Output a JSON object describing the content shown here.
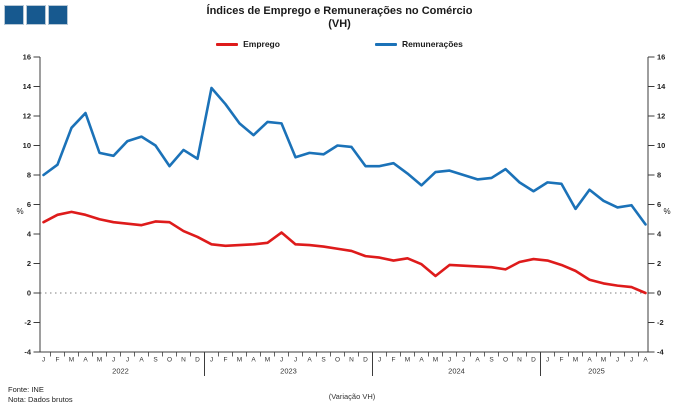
{
  "logo": {
    "square_count": 3,
    "color": "#17598F"
  },
  "title": "Índices de Emprego e Remunerações no Comércio",
  "subtitle": "(VH)",
  "legend": [
    {
      "label": "Emprego",
      "color": "#DE1B1B"
    },
    {
      "label": "Remunerações",
      "color": "#1B72B8"
    }
  ],
  "footer": {
    "source": "Fonte: INE",
    "note": "Nota: Dados brutos",
    "caption": "(Variação VH)"
  },
  "chart_data": {
    "type": "line",
    "title": "Índices de Emprego e Remunerações no Comércio (VH)",
    "ylabel_left": "%",
    "ylabel_right": "%",
    "ylim": [
      -4,
      16
    ],
    "yticks": [
      16,
      14,
      12,
      10,
      8,
      6,
      4,
      2,
      0,
      -2,
      -4
    ],
    "grid": false,
    "zero_line_dotted": true,
    "legend_position": "top",
    "axis_color": "#3c3c3c",
    "years": [
      {
        "label": "2022",
        "months": 12
      },
      {
        "label": "2023",
        "months": 12
      },
      {
        "label": "2024",
        "months": 12
      },
      {
        "label": "2025",
        "months": 8
      }
    ],
    "x_labels": [
      "J",
      "F",
      "M",
      "A",
      "M",
      "J",
      "J",
      "A",
      "S",
      "O",
      "N",
      "D",
      "J",
      "F",
      "M",
      "A",
      "M",
      "J",
      "J",
      "A",
      "S",
      "O",
      "N",
      "D",
      "J",
      "F",
      "M",
      "A",
      "M",
      "J",
      "J",
      "A",
      "S",
      "O",
      "N",
      "D",
      "J",
      "F",
      "M",
      "A",
      "M",
      "J",
      "J",
      "A"
    ],
    "series": [
      {
        "name": "Emprego",
        "color": "#DE1B1B",
        "values": [
          4.8,
          5.3,
          5.5,
          5.3,
          5.0,
          4.8,
          4.7,
          4.6,
          4.85,
          4.8,
          4.2,
          3.8,
          3.3,
          3.2,
          3.25,
          3.3,
          3.4,
          4.1,
          3.3,
          3.25,
          3.15,
          3.0,
          2.85,
          2.5,
          2.4,
          2.2,
          2.35,
          1.95,
          1.15,
          1.9,
          1.85,
          1.8,
          1.75,
          1.6,
          2.1,
          2.3,
          2.2,
          1.9,
          1.5,
          0.9,
          0.65,
          0.5,
          0.4,
          0.0
        ]
      },
      {
        "name": "Remunerações",
        "color": "#1B72B8",
        "values": [
          8.0,
          8.7,
          11.2,
          12.2,
          9.5,
          9.3,
          10.3,
          10.6,
          10.0,
          8.6,
          9.7,
          9.1,
          13.9,
          12.8,
          11.5,
          10.7,
          11.6,
          11.5,
          9.2,
          9.5,
          9.4,
          10.0,
          9.9,
          8.6,
          8.6,
          8.8,
          8.1,
          7.3,
          8.2,
          8.3,
          8.0,
          7.7,
          7.8,
          8.4,
          7.5,
          6.9,
          7.5,
          7.4,
          5.7,
          7.0,
          6.25,
          5.8,
          5.95,
          4.65
        ]
      }
    ]
  }
}
